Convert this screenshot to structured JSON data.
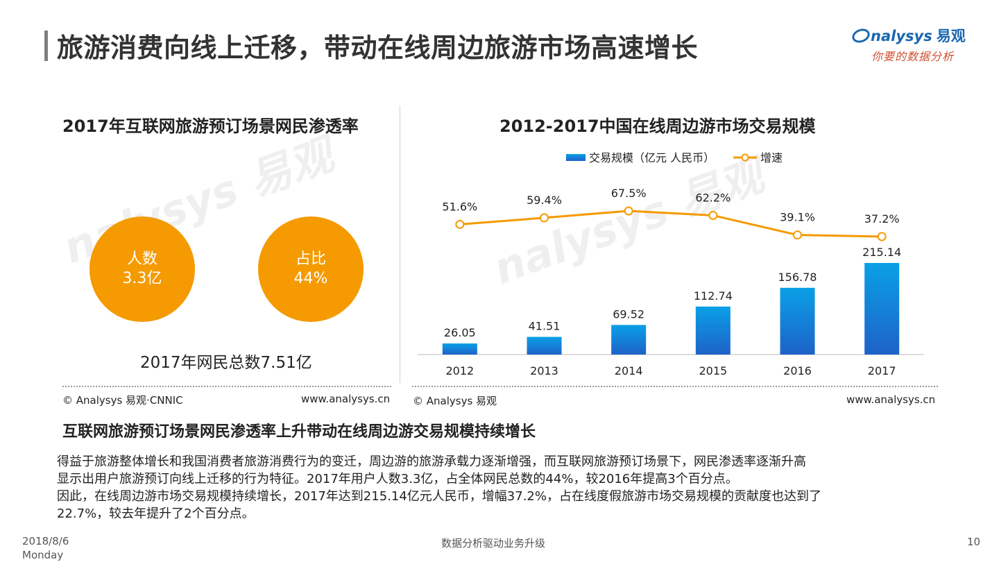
{
  "header": {
    "title": "旅游消费向线上迁移，带动在线周边旅游市场高速增长",
    "logo_text": "nalysys",
    "logo_cn": "易观",
    "logo_tagline": "你要的数据分析"
  },
  "left_panel": {
    "title": "2017年互联网旅游预订场景网民渗透率",
    "circles": [
      {
        "label": "人数",
        "value": "3.3亿"
      },
      {
        "label": "占比",
        "value": "44%"
      }
    ],
    "total_text": "2017年网民总数7.51亿",
    "source": "© Analysys 易观·CNNIC",
    "url": "www.analysys.cn"
  },
  "right_panel": {
    "source": "© Analysys 易观",
    "url": "www.analysys.cn"
  },
  "watermark": {
    "text": "nalysys 易观",
    "sub": "你要的数据分析"
  },
  "chart_data": {
    "type": "bar",
    "title": "2012-2017中国在线周边游市场交易规模",
    "categories": [
      "2012",
      "2013",
      "2014",
      "2015",
      "2016",
      "2017"
    ],
    "series": [
      {
        "name": "交易规模（亿元 人民币）",
        "type": "bar",
        "values": [
          26.05,
          41.51,
          69.52,
          112.74,
          156.78,
          215.14
        ],
        "labels": [
          "26.05",
          "41.51",
          "69.52",
          "112.74",
          "156.78",
          "215.14"
        ],
        "color": "#1e88d8"
      },
      {
        "name": "增速",
        "type": "line",
        "values": [
          51.6,
          59.4,
          67.5,
          62.2,
          39.1,
          37.2
        ],
        "labels": [
          "51.6%",
          "59.4%",
          "67.5%",
          "62.2%",
          "39.1%",
          "37.2%"
        ],
        "color": "#f59a00"
      }
    ],
    "legend_position": "top",
    "grid": false
  },
  "summary": {
    "heading": "互联网旅游预订场景网民渗透率上升带动在线周边游交易规模持续增长",
    "lines": [
      "得益于旅游整体增长和我国消费者旅游消费行为的变迁，周边游的旅游承载力逐渐增强，而互联网旅游预订场景下，网民渗透率逐渐升高",
      "显示出用户旅游预订向线上迁移的行为特征。2017年用户人数3.3亿，占全体网民总数的44%，较2016年提高3个百分点。",
      "因此，在线周边游市场交易规模持续增长，2017年达到215.14亿元人民币，增幅37.2%，占在线度假旅游市场交易规模的贡献度也达到了",
      "22.7%，较去年提升了2个百分点。"
    ]
  },
  "footer": {
    "date": "2018/8/6",
    "weekday": "Monday",
    "center": "数据分析驱动业务升级",
    "page": "10"
  },
  "colors": {
    "bar": "#1e88d8",
    "line": "#f59a00",
    "circle": "#f59a00",
    "title_bar": "#7f7f7f"
  }
}
